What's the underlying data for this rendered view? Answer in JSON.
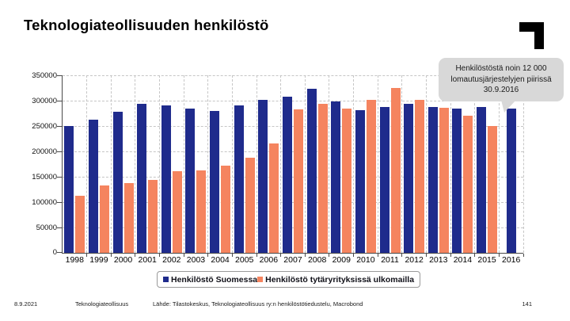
{
  "slide": {
    "title": "Teknologiateollisuuden henkilöstö"
  },
  "callout": {
    "text": "Henkilöstöstä noin 12 000 lomautusjärjestelyjen piirissä 30.9.2016"
  },
  "chart_data": {
    "type": "bar",
    "title": "",
    "xlabel": "",
    "ylabel": "",
    "categories": [
      "1998",
      "1999",
      "2000",
      "2001",
      "2002",
      "2003",
      "2004",
      "2005",
      "2006",
      "2007",
      "2008",
      "2009",
      "2010",
      "2011",
      "2012",
      "2013",
      "2014",
      "2015",
      "2016"
    ],
    "series": [
      {
        "name": "Henkilöstö Suomessa",
        "color": "#1F2B8C",
        "values": [
          250000,
          262000,
          278000,
          293000,
          290000,
          284000,
          280000,
          290000,
          301000,
          308000,
          324000,
          298000,
          281000,
          288000,
          293000,
          288000,
          285000,
          287000,
          284000
        ]
      },
      {
        "name": "Henkilöstö tytäryrityksissä ulkomailla",
        "color": "#F5845F",
        "values": [
          112000,
          133000,
          138000,
          144000,
          161000,
          163000,
          172000,
          188000,
          216000,
          283000,
          294000,
          284000,
          302000,
          325000,
          301000,
          286000,
          271000,
          250000,
          null
        ]
      }
    ],
    "ylim": [
      0,
      350000
    ],
    "ytick_step": 50000,
    "ytick_labels": [
      "0",
      "50000",
      "100000",
      "150000",
      "200000",
      "250000",
      "300000",
      "350000"
    ],
    "grid": true,
    "gridline_color": "#c6c6c6",
    "legend_position": "bottom"
  },
  "footer": {
    "date": "8.9.2021",
    "organization": "Teknologiateollisuus",
    "source": "Lähde: Tilastokeskus, Teknologiateollisuus ry:n henkilöstötiedustelu, Macrobond",
    "page": "141"
  }
}
